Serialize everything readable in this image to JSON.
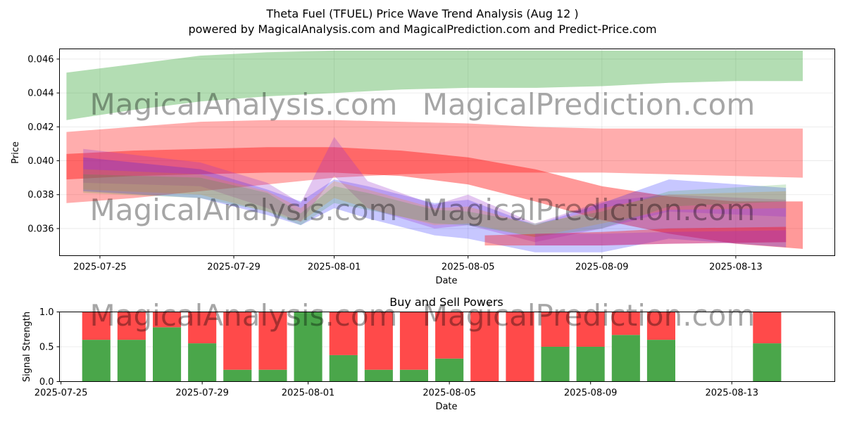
{
  "title": "Theta Fuel (TFUEL) Price Wave Trend Analysis (Aug 12 )",
  "subtitle": "powered by MagicalAnalysis.com and MagicalPrediction.com and Predict-Price.com",
  "watermarks": [
    "MagicalAnalysis.com",
    "MagicalPrediction.com"
  ],
  "colors": {
    "green": "#2ca02c",
    "red": "#ff0000",
    "blue": "#0000ff",
    "purple": "#9932cc",
    "orange": "#ff8c00",
    "buy": "#4aa64a",
    "sell": "#ff4a4a"
  },
  "chart_data": [
    {
      "type": "area",
      "title": "",
      "xlabel": "Date",
      "ylabel": "Price",
      "xlim": [
        "2025-07-23T19:00",
        "2025-08-15T23:00"
      ],
      "ylim": [
        0.0344,
        0.0466
      ],
      "grid": true,
      "x_ticks": [
        "2025-07-25",
        "2025-07-29",
        "2025-08-01",
        "2025-08-05",
        "2025-08-09",
        "2025-08-13"
      ],
      "y_ticks": [
        "0.036",
        "0.038",
        "0.040",
        "0.042",
        "0.044",
        "0.046"
      ],
      "bands": [
        {
          "color": "green",
          "opacity": 0.36,
          "x": [
            "2025-07-24",
            "2025-07-26",
            "2025-07-28",
            "2025-07-30",
            "2025-08-01",
            "2025-08-03",
            "2025-08-05",
            "2025-08-07",
            "2025-08-09",
            "2025-08-11",
            "2025-08-13",
            "2025-08-15"
          ],
          "upper": [
            0.0452,
            0.0457,
            0.0462,
            0.0464,
            0.0465,
            0.0465,
            0.0465,
            0.0465,
            0.0465,
            0.0465,
            0.0465,
            0.0465
          ],
          "lower": [
            0.0424,
            0.043,
            0.0435,
            0.0438,
            0.044,
            0.0442,
            0.0443,
            0.0443,
            0.0444,
            0.0446,
            0.0447,
            0.0447
          ]
        },
        {
          "color": "red",
          "opacity": 0.32,
          "x": [
            "2025-07-24",
            "2025-07-26",
            "2025-07-28",
            "2025-07-30",
            "2025-08-01",
            "2025-08-03",
            "2025-08-05",
            "2025-08-07",
            "2025-08-09",
            "2025-08-11",
            "2025-08-13",
            "2025-08-15"
          ],
          "upper": [
            0.0417,
            0.042,
            0.0423,
            0.0424,
            0.0424,
            0.0423,
            0.0422,
            0.042,
            0.0419,
            0.0419,
            0.0419,
            0.0419
          ],
          "lower": [
            0.0375,
            0.0378,
            0.0382,
            0.0386,
            0.039,
            0.0392,
            0.0393,
            0.0393,
            0.0393,
            0.0392,
            0.0391,
            0.039
          ]
        },
        {
          "color": "red",
          "opacity": 0.4,
          "x": [
            "2025-07-24",
            "2025-07-26",
            "2025-07-28",
            "2025-07-30",
            "2025-08-01",
            "2025-08-03",
            "2025-08-05",
            "2025-08-07",
            "2025-08-09",
            "2025-08-11",
            "2025-08-13",
            "2025-08-15"
          ],
          "upper": [
            0.0404,
            0.0406,
            0.0407,
            0.0408,
            0.0408,
            0.0406,
            0.0402,
            0.0395,
            0.0385,
            0.0379,
            0.0376,
            0.0376
          ],
          "lower": [
            0.0389,
            0.0391,
            0.0392,
            0.0393,
            0.0393,
            0.0391,
            0.0386,
            0.0376,
            0.0365,
            0.0357,
            0.0351,
            0.0348
          ]
        },
        {
          "color": "blue",
          "opacity": 0.22,
          "x": [
            "2025-07-24.5",
            "2025-07-28",
            "2025-07-30",
            "2025-07-31",
            "2025-08-01",
            "2025-08-02",
            "2025-08-04",
            "2025-08-05",
            "2025-08-07",
            "2025-08-09",
            "2025-08-11",
            "2025-08-14.5"
          ],
          "upper": [
            0.0402,
            0.0395,
            0.0383,
            0.0376,
            0.0389,
            0.0385,
            0.0375,
            0.0377,
            0.0362,
            0.0375,
            0.0389,
            0.0384
          ],
          "lower": [
            0.0382,
            0.0378,
            0.0368,
            0.0362,
            0.0372,
            0.0366,
            0.0356,
            0.0354,
            0.0346,
            0.0346,
            0.0354,
            0.0349
          ]
        },
        {
          "color": "purple",
          "opacity": 0.28,
          "x": [
            "2025-07-24.5",
            "2025-07-28",
            "2025-07-30",
            "2025-07-31",
            "2025-08-01",
            "2025-08-02",
            "2025-08-04",
            "2025-08-05",
            "2025-08-07",
            "2025-08-09",
            "2025-08-11",
            "2025-08-14.5"
          ],
          "upper": [
            0.0407,
            0.0399,
            0.0387,
            0.0375,
            0.0414,
            0.0388,
            0.0374,
            0.038,
            0.0363,
            0.0376,
            0.038,
            0.0377
          ],
          "lower": [
            0.0387,
            0.0385,
            0.0372,
            0.0364,
            0.0391,
            0.0372,
            0.036,
            0.0362,
            0.0352,
            0.036,
            0.037,
            0.0367
          ]
        },
        {
          "color": "orange",
          "opacity": 0.22,
          "x": [
            "2025-07-24.5",
            "2025-07-28",
            "2025-07-30",
            "2025-07-31",
            "2025-08-01",
            "2025-08-02",
            "2025-08-04",
            "2025-08-05",
            "2025-08-07",
            "2025-08-09",
            "2025-08-11",
            "2025-08-14.5"
          ],
          "upper": [
            0.0395,
            0.0392,
            0.0382,
            0.0372,
            0.0388,
            0.0383,
            0.0372,
            0.0373,
            0.0362,
            0.0372,
            0.038,
            0.0382
          ],
          "lower": [
            0.0383,
            0.038,
            0.037,
            0.0364,
            0.0378,
            0.0372,
            0.0362,
            0.0363,
            0.0355,
            0.0363,
            0.0371,
            0.0372
          ]
        },
        {
          "color": "green",
          "opacity": 0.2,
          "x": [
            "2025-07-24.5",
            "2025-07-28",
            "2025-07-30",
            "2025-07-31",
            "2025-08-01",
            "2025-08-02",
            "2025-08-04",
            "2025-08-05",
            "2025-08-07",
            "2025-08-09",
            "2025-08-11",
            "2025-08-14.5"
          ],
          "upper": [
            0.0392,
            0.039,
            0.0381,
            0.0369,
            0.0385,
            0.0381,
            0.0371,
            0.037,
            0.0363,
            0.037,
            0.0382,
            0.0386
          ],
          "lower": [
            0.0381,
            0.0378,
            0.037,
            0.0362,
            0.0375,
            0.0371,
            0.0363,
            0.0362,
            0.0355,
            0.036,
            0.0373,
            0.0376
          ]
        },
        {
          "color": "red",
          "opacity": 0.35,
          "x": [
            "2025-08-05.5",
            "2025-08-09",
            "2025-08-11",
            "2025-08-14.5"
          ],
          "upper": [
            0.0356,
            0.0358,
            0.036,
            0.0361
          ],
          "lower": [
            0.035,
            0.035,
            0.0351,
            0.0352
          ]
        },
        {
          "color": "purple",
          "opacity": 0.3,
          "x": [
            "2025-08-07",
            "2025-08-09",
            "2025-08-11",
            "2025-08-14.5"
          ],
          "upper": [
            0.0357,
            0.0357,
            0.0358,
            0.0359
          ],
          "lower": [
            0.035,
            0.035,
            0.0351,
            0.0352
          ]
        }
      ]
    },
    {
      "type": "bar",
      "title": "Buy and Sell Powers",
      "xlabel": "Date",
      "ylabel": "Signal Strength",
      "xlim": [
        "2025-07-24T23:00",
        "2025-08-15T22:00"
      ],
      "ylim": [
        0,
        1
      ],
      "grid": true,
      "x_ticks": [
        "2025-07-25",
        "2025-07-29",
        "2025-08-01",
        "2025-08-05",
        "2025-08-09",
        "2025-08-13"
      ],
      "y_ticks": [
        "0.0",
        "0.5",
        "1.0"
      ],
      "categories": [
        "2025-07-26",
        "2025-07-27",
        "2025-07-28",
        "2025-07-29",
        "2025-07-30",
        "2025-07-31",
        "2025-08-01",
        "2025-08-02",
        "2025-08-03",
        "2025-08-04",
        "2025-08-05",
        "2025-08-06",
        "2025-08-07",
        "2025-08-08",
        "2025-08-09",
        "2025-08-10",
        "2025-08-11",
        "2025-08-14"
      ],
      "series": [
        {
          "name": "buy",
          "values": [
            0.6,
            0.6,
            0.78,
            0.55,
            0.17,
            0.17,
            1.0,
            0.38,
            0.17,
            0.17,
            0.33,
            0.0,
            0.0,
            0.5,
            0.5,
            0.67,
            0.6,
            0.55
          ]
        },
        {
          "name": "sell",
          "values": [
            0.4,
            0.4,
            0.22,
            0.45,
            0.83,
            0.83,
            0.0,
            0.62,
            0.83,
            0.83,
            0.67,
            1.0,
            1.0,
            0.5,
            0.5,
            0.33,
            0.4,
            0.45
          ]
        }
      ]
    }
  ]
}
